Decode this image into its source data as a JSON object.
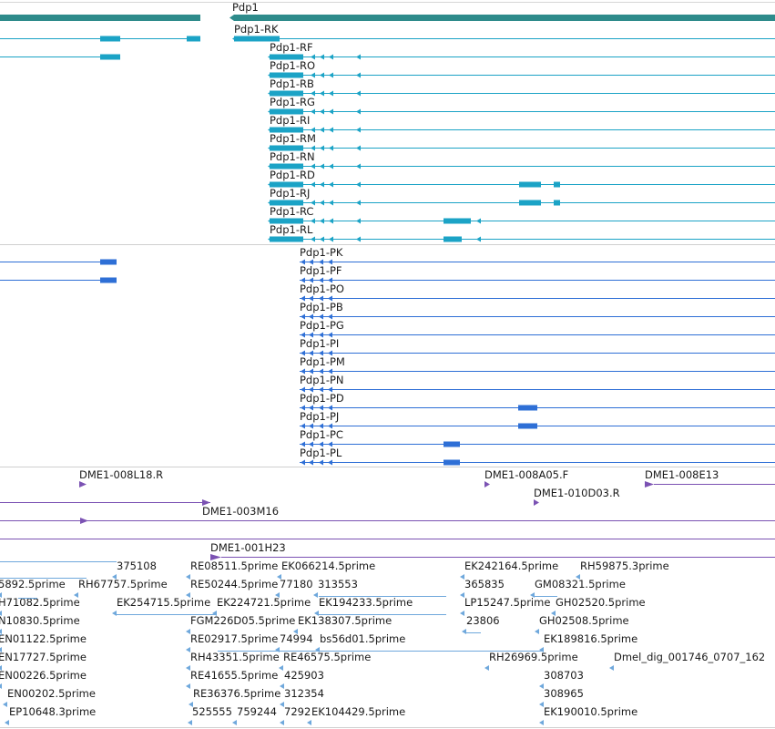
{
  "colors": {
    "gene": "#2e8b8b",
    "transcript": "#1ba3c6",
    "cds": "#2e6fd6",
    "clone": "#7b52b3",
    "est": "#6fa8dc",
    "divider": "#cfcfcf"
  },
  "tracks": {
    "gene": {
      "label": "Pdp1"
    },
    "transcripts": [
      {
        "label": "Pdp1-RK"
      },
      {
        "label": "Pdp1-RF"
      },
      {
        "label": "Pdp1-RO"
      },
      {
        "label": "Pdp1-RB"
      },
      {
        "label": "Pdp1-RG"
      },
      {
        "label": "Pdp1-RI"
      },
      {
        "label": "Pdp1-RM"
      },
      {
        "label": "Pdp1-RN"
      },
      {
        "label": "Pdp1-RD"
      },
      {
        "label": "Pdp1-RJ"
      },
      {
        "label": "Pdp1-RC"
      },
      {
        "label": "Pdp1-RL"
      }
    ],
    "proteins": [
      {
        "label": "Pdp1-PK"
      },
      {
        "label": "Pdp1-PF"
      },
      {
        "label": "Pdp1-PO"
      },
      {
        "label": "Pdp1-PB"
      },
      {
        "label": "Pdp1-PG"
      },
      {
        "label": "Pdp1-PI"
      },
      {
        "label": "Pdp1-PM"
      },
      {
        "label": "Pdp1-PN"
      },
      {
        "label": "Pdp1-PD"
      },
      {
        "label": "Pdp1-PJ"
      },
      {
        "label": "Pdp1-PC"
      },
      {
        "label": "Pdp1-PL"
      }
    ],
    "clones": [
      {
        "label": "DME1-008L18.R"
      },
      {
        "label": "DME1-008A05.F"
      },
      {
        "label": "DME1-008E13"
      },
      {
        "label": "DME1-010D03.R"
      },
      {
        "label": "DME1-003M16"
      },
      {
        "label": "DME1-001H23"
      }
    ],
    "ests": [
      {
        "label": "375108"
      },
      {
        "label": "RE08511.5prime"
      },
      {
        "label": "EK066214.5prime"
      },
      {
        "label": "EK242164.5prime"
      },
      {
        "label": "RH59875.3prime"
      },
      {
        "label": "5892.5prime"
      },
      {
        "label": "RH67757.5prime"
      },
      {
        "label": "RE50244.5prime"
      },
      {
        "label": "77180"
      },
      {
        "label": "313553"
      },
      {
        "label": "365835"
      },
      {
        "label": "GM08321.5prime"
      },
      {
        "label": "H71082.5prime"
      },
      {
        "label": "EK254715.5prime"
      },
      {
        "label": "EK224721.5prime"
      },
      {
        "label": "EK194233.5prime"
      },
      {
        "label": "LP15247.5prime"
      },
      {
        "label": "GH02520.5prime"
      },
      {
        "label": "N10830.5prime"
      },
      {
        "label": "FGM226D05.5prime"
      },
      {
        "label": "EK138307.5prime"
      },
      {
        "label": "23806"
      },
      {
        "label": "GH02508.5prime"
      },
      {
        "label": "EN01122.5prime"
      },
      {
        "label": "RE02917.5prime"
      },
      {
        "label": "74994"
      },
      {
        "label": "bs56d01.5prime"
      },
      {
        "label": "EK189816.5prime"
      },
      {
        "label": "EN17727.5prime"
      },
      {
        "label": "RH43351.5prime"
      },
      {
        "label": "RE46575.5prime"
      },
      {
        "label": "RH26969.5prime"
      },
      {
        "label": "Dmel_dig_001746_0707_162"
      },
      {
        "label": "EN00226.5prime"
      },
      {
        "label": "RE41655.5prime"
      },
      {
        "label": "425903"
      },
      {
        "label": "308703"
      },
      {
        "label": "EN00202.5prime"
      },
      {
        "label": "RE36376.5prime"
      },
      {
        "label": "312354"
      },
      {
        "label": "308965"
      },
      {
        "label": "EP10648.3prime"
      },
      {
        "label": "525555"
      },
      {
        "label": "759244"
      },
      {
        "label": "7292"
      },
      {
        "label": "EK104429.5prime"
      },
      {
        "label": "EK190010.5prime"
      }
    ]
  }
}
